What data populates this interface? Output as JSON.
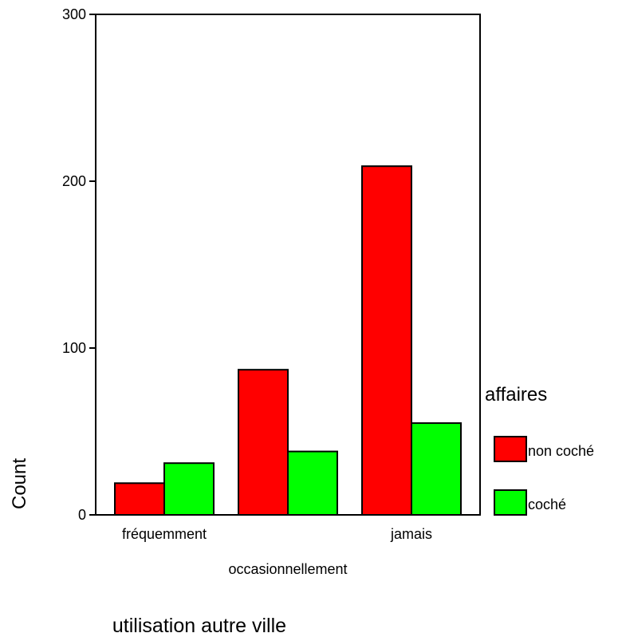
{
  "chart_data": {
    "type": "bar",
    "xlabel": "utilisation autre ville",
    "ylabel": "Count",
    "ylim": [
      0,
      300
    ],
    "yticks": [
      0,
      100,
      200,
      300
    ],
    "categories": [
      "fréquemment",
      "occasionnellement",
      "jamais"
    ],
    "series": [
      {
        "name": "non coché",
        "color": "#ff0000",
        "values": [
          19,
          87,
          209
        ]
      },
      {
        "name": "coché",
        "color": "#00ff00",
        "values": [
          31,
          38,
          55
        ]
      }
    ],
    "legend": {
      "title": "affaires",
      "position": "right"
    },
    "grid": false
  }
}
